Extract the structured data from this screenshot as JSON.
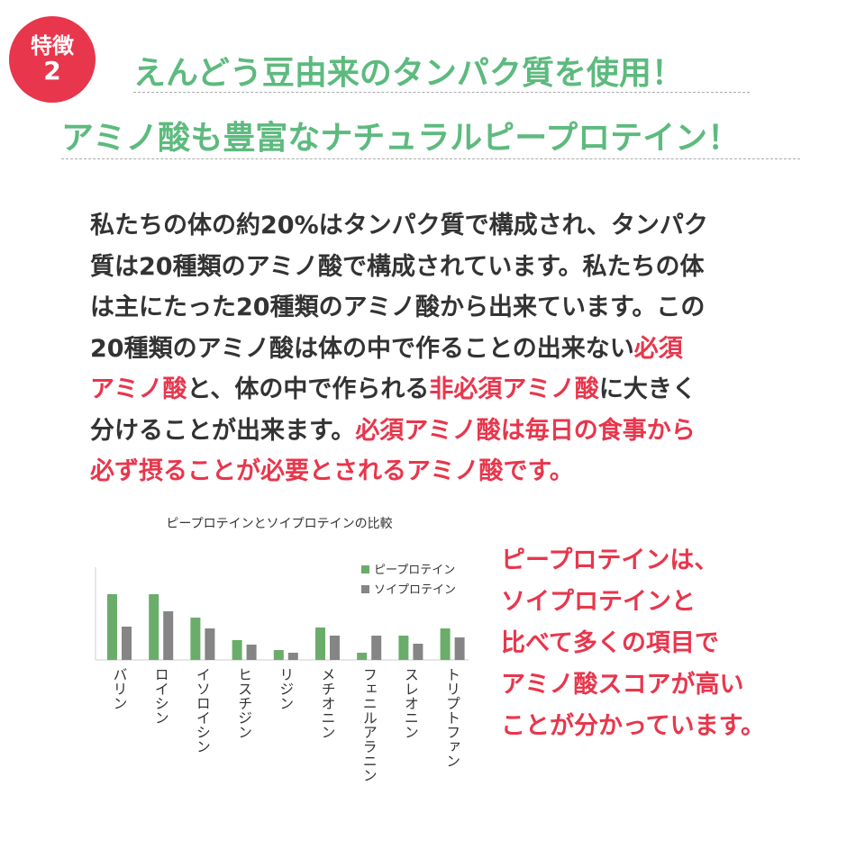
{
  "badge": {
    "line1": "特徴",
    "line2": "2"
  },
  "headline": {
    "line1": "えんどう豆由来のタンパク質を使用！",
    "line2": "アミノ酸も豊富なナチュラルピープロテイン！"
  },
  "body": {
    "lines": [
      [
        {
          "text": "私たちの体の約20%はタンパク質で構成され、タンパク",
          "red": false
        }
      ],
      [
        {
          "text": "質は20種類のアミノ酸で構成されています。私たちの体",
          "red": false
        }
      ],
      [
        {
          "text": "は主にたった20種類のアミノ酸から出来ています。この",
          "red": false
        }
      ],
      [
        {
          "text": "20種類のアミノ酸は体の中で作ることの出来ない",
          "red": false
        },
        {
          "text": "必須",
          "red": true
        }
      ],
      [
        {
          "text": "アミノ酸",
          "red": true
        },
        {
          "text": "と、体の中で作られる",
          "red": false
        },
        {
          "text": "非必須アミノ酸",
          "red": true
        },
        {
          "text": "に大きく",
          "red": false
        }
      ],
      [
        {
          "text": "分けることが出来ます。",
          "red": false
        },
        {
          "text": "必須アミノ酸は毎日の食事から",
          "red": true
        }
      ],
      [
        {
          "text": "必ず摂ることが必要とされるアミノ酸です。",
          "red": true
        }
      ]
    ]
  },
  "side_note": {
    "lines": [
      "ピープロテインは、",
      "ソイプロテインと",
      "比べて多くの項目で",
      "アミノ酸スコアが高い",
      "ことが分かっています。"
    ]
  },
  "colors": {
    "accent_green": "#5dba7e",
    "accent_red": "#e8364c",
    "series_pea": "#6aad6a",
    "series_soy": "#858585"
  },
  "chart_data": {
    "type": "bar",
    "title": "ピープロテインとソイプロテインの比較",
    "categories": [
      "バリン",
      "ロイシン",
      "イソロイシン",
      "ヒスチジン",
      "リジン",
      "メチオニン",
      "フェニルアラニン",
      "スレオニン",
      "トリプトファン"
    ],
    "series": [
      {
        "name": "ピープロテイン",
        "values": [
          73,
          73,
          47,
          22,
          11,
          36,
          8,
          27,
          35
        ]
      },
      {
        "name": "ソイプロテイン",
        "values": [
          37,
          54,
          35,
          17,
          8,
          27,
          27,
          18,
          25
        ]
      }
    ],
    "ylim": [
      0,
      100
    ],
    "grid": false,
    "legend": "top-right"
  }
}
